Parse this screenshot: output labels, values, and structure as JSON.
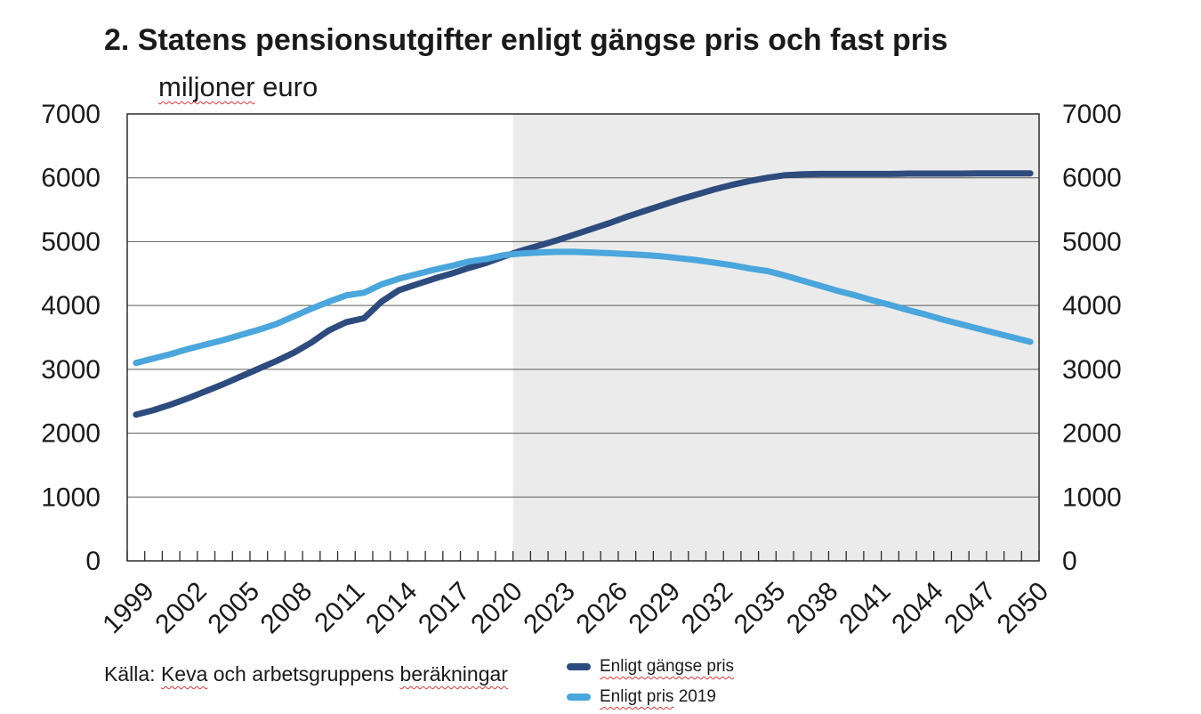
{
  "title": "2. Statens pensionsutgifter enligt gängse pris och fast pris",
  "subtitle": {
    "underlined": "miljoner",
    "rest": " euro"
  },
  "source": {
    "prefix": "Källa: ",
    "word1": "Keva",
    "middle": " och arbetsgruppens ",
    "word2": "beräkningar"
  },
  "legend": {
    "items": [
      {
        "label": "Enligt gängse pris",
        "label_suffix": "",
        "color": "#2E4B7D"
      },
      {
        "label": "Enligt pris",
        "label_suffix": " 2019",
        "color": "#4AA6DC"
      }
    ]
  },
  "chart_data": {
    "type": "line",
    "title": "2. Statens pensionsutgifter enligt gängse pris och fast pris",
    "subtitle": "miljoner euro",
    "xlabel": "",
    "ylabel": "",
    "ylim": [
      0,
      7000
    ],
    "ytick_step": 1000,
    "xtick_label_step": 3,
    "grid": true,
    "gridline_color": "#5a5a5a",
    "axis_color": "#2b2b2b",
    "forecast_start_year": 2021,
    "forecast_shade_color": "#EBEBEB",
    "legend_position": "bottom-center",
    "x": [
      1999,
      2000,
      2001,
      2002,
      2003,
      2004,
      2005,
      2006,
      2007,
      2008,
      2009,
      2010,
      2011,
      2012,
      2013,
      2014,
      2015,
      2016,
      2017,
      2018,
      2019,
      2020,
      2021,
      2022,
      2023,
      2024,
      2025,
      2026,
      2027,
      2028,
      2029,
      2030,
      2031,
      2032,
      2033,
      2034,
      2035,
      2036,
      2037,
      2038,
      2039,
      2040,
      2041,
      2042,
      2043,
      2044,
      2045,
      2046,
      2047,
      2048,
      2049,
      2050
    ],
    "series": [
      {
        "name": "Enligt gängse pris",
        "color": "#2E4B7D",
        "values": [
          2290,
          2360,
          2450,
          2550,
          2660,
          2770,
          2890,
          3010,
          3130,
          3260,
          3420,
          3610,
          3740,
          3800,
          4060,
          4240,
          4330,
          4420,
          4500,
          4590,
          4670,
          4770,
          4860,
          4940,
          5020,
          5110,
          5200,
          5290,
          5390,
          5480,
          5570,
          5660,
          5740,
          5820,
          5890,
          5950,
          6000,
          6040,
          6055,
          6060,
          6060,
          6060,
          6060,
          6060,
          6065,
          6065,
          6065,
          6065,
          6070,
          6070,
          6070,
          6070
        ]
      },
      {
        "name": "Enligt pris 2019",
        "color": "#4AA6DC",
        "values": [
          3100,
          3170,
          3240,
          3320,
          3390,
          3460,
          3540,
          3620,
          3710,
          3830,
          3950,
          4060,
          4160,
          4200,
          4330,
          4420,
          4490,
          4560,
          4620,
          4690,
          4730,
          4790,
          4815,
          4830,
          4840,
          4840,
          4830,
          4820,
          4805,
          4790,
          4770,
          4740,
          4710,
          4670,
          4630,
          4580,
          4540,
          4470,
          4390,
          4310,
          4230,
          4160,
          4080,
          4010,
          3930,
          3860,
          3780,
          3710,
          3640,
          3570,
          3500,
          3430
        ]
      }
    ]
  }
}
